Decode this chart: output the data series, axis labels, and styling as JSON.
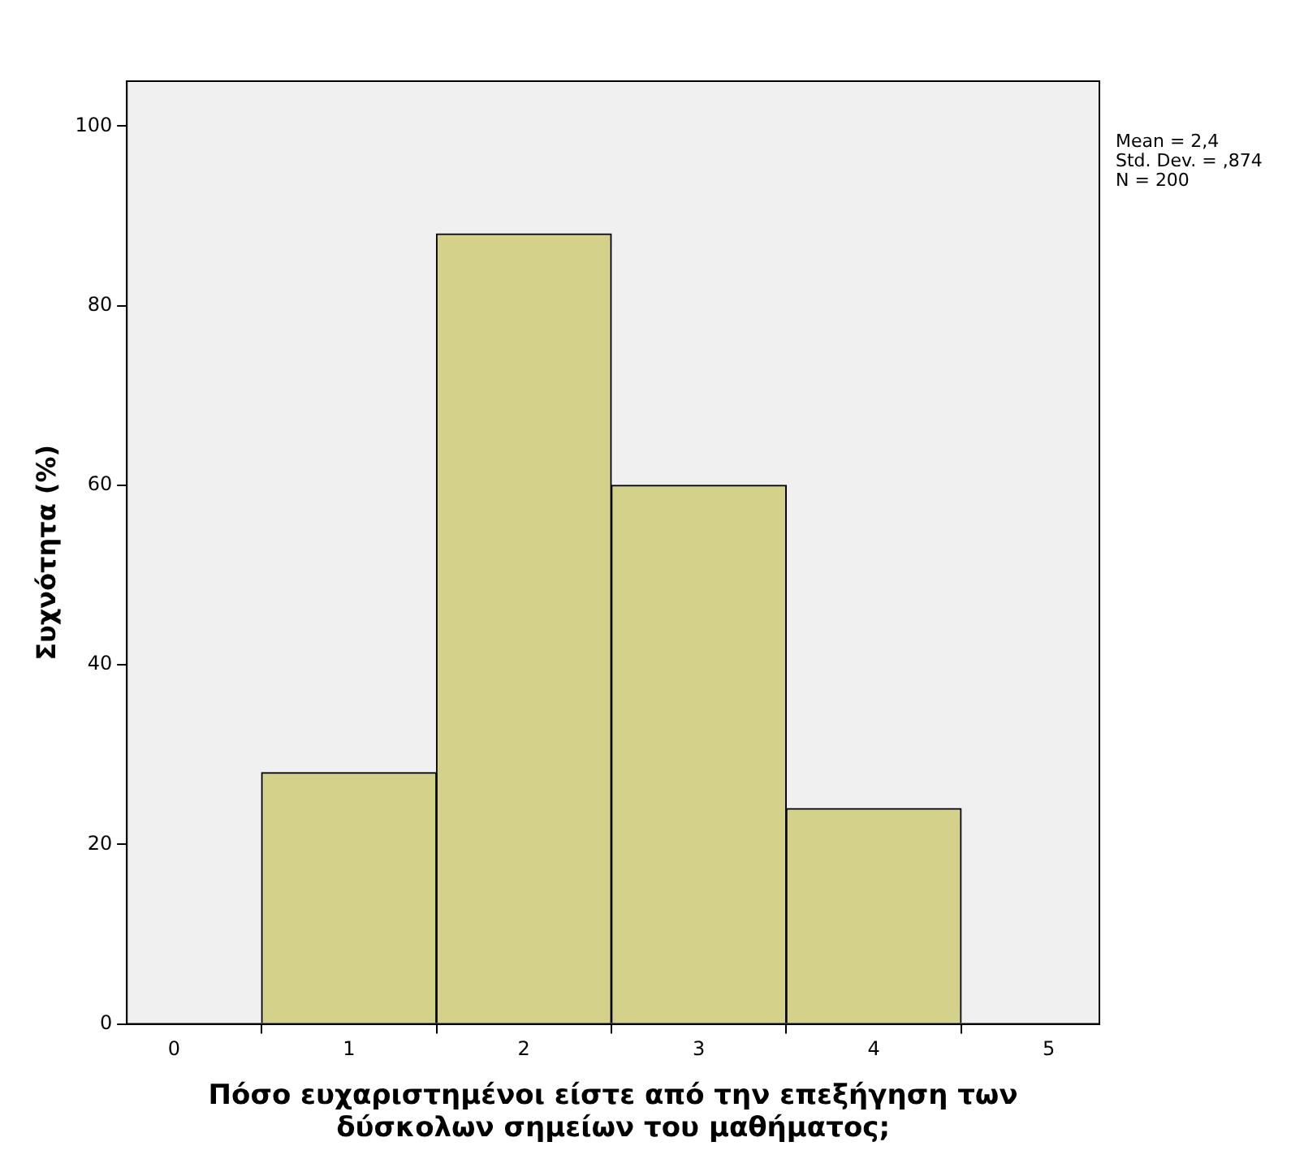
{
  "chart_data": {
    "type": "histogram",
    "xlabel": "Πόσο ευχαριστημένοι είστε από την επεξήγηση των δύσκολων σημείων του μαθήματος;",
    "ylabel": "Συχνότητα (%)",
    "bins": [
      0.5,
      1.5,
      2.5,
      3.5,
      4.5
    ],
    "values": [
      28,
      88,
      60,
      24
    ],
    "color": "#d4d28a",
    "xlim": [
      -0.27,
      5.29
    ],
    "xticks": [
      0,
      1,
      2,
      3,
      4,
      5
    ],
    "ylim": [
      0,
      105
    ],
    "yticks": [
      0,
      20,
      40,
      60,
      80,
      100
    ],
    "grid": false,
    "annotations": [
      "Mean = 2,4",
      "Std. Dev. = ,874",
      "N = 200"
    ]
  }
}
